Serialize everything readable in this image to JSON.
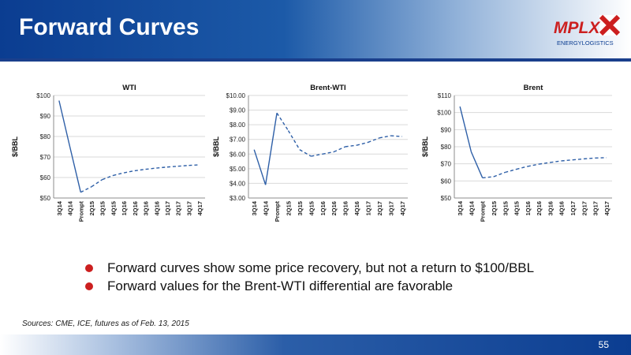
{
  "slide": {
    "title": "Forward Curves",
    "logo_text_top": "MPLX",
    "logo_text_bottom": "ENERGYLOGISTICS",
    "source": "Sources:  CME, ICE, futures as of Feb. 13, 2015",
    "page_number": "55",
    "bullets": [
      "Forward curves show some price recovery, but not a return to $100/BBL",
      "Forward values for the Brent-WTI differential are favorable"
    ]
  },
  "colors": {
    "header_blue": "#0b3d91",
    "line": "#2e5fa7",
    "bullet_red": "#cc1f1f"
  },
  "chart_data": [
    {
      "type": "line",
      "title": "WTI",
      "ylabel": "$/BBL",
      "ylim": [
        50,
        100
      ],
      "yticks": [
        50,
        60,
        70,
        80,
        90,
        100
      ],
      "ytick_labels": [
        "$50",
        "$60",
        "$70",
        "$80",
        "$90",
        "$100"
      ],
      "categories": [
        "3Q14",
        "4Q14",
        "Prompt",
        "2Q15",
        "3Q15",
        "4Q15",
        "1Q16",
        "2Q16",
        "3Q16",
        "4Q16",
        "1Q17",
        "2Q17",
        "3Q17",
        "4Q17"
      ],
      "solid_until_index": 2,
      "grid": true,
      "values": [
        97.5,
        75,
        52.8,
        55.5,
        59,
        61,
        62.3,
        63.3,
        64,
        64.6,
        65.1,
        65.5,
        65.9,
        66.2
      ]
    },
    {
      "type": "line",
      "title": "Brent-WTI",
      "ylabel": "$/BBL",
      "ylim": [
        3,
        10
      ],
      "yticks": [
        3,
        4,
        5,
        6,
        7,
        8,
        9,
        10
      ],
      "ytick_labels": [
        "$3.00",
        "$4.00",
        "$5.00",
        "$6.00",
        "$7.00",
        "$8.00",
        "$9.00",
        "$10.00"
      ],
      "categories": [
        "3Q14",
        "4Q14",
        "Prompt",
        "2Q15",
        "3Q15",
        "4Q15",
        "1Q16",
        "2Q16",
        "3Q16",
        "4Q16",
        "1Q17",
        "2Q17",
        "3Q17",
        "4Q17"
      ],
      "solid_until_index": 2,
      "grid": true,
      "values": [
        6.3,
        3.9,
        8.8,
        7.6,
        6.3,
        5.85,
        6.0,
        6.15,
        6.5,
        6.6,
        6.8,
        7.1,
        7.25,
        7.2
      ]
    },
    {
      "type": "line",
      "title": "Brent",
      "ylabel": "$/BBL",
      "ylim": [
        50,
        110
      ],
      "yticks": [
        50,
        60,
        70,
        80,
        90,
        100,
        110
      ],
      "ytick_labels": [
        "$50",
        "$60",
        "$70",
        "$80",
        "$90",
        "$100",
        "$110"
      ],
      "categories": [
        "3Q14",
        "4Q14",
        "Prompt",
        "2Q15",
        "3Q15",
        "4Q15",
        "1Q16",
        "2Q16",
        "3Q16",
        "4Q16",
        "1Q17",
        "2Q17",
        "3Q17",
        "4Q17"
      ],
      "solid_until_index": 2,
      "grid": true,
      "values": [
        103.5,
        77,
        61.8,
        62.5,
        65,
        66.8,
        68.5,
        69.8,
        70.8,
        71.7,
        72.3,
        72.9,
        73.4,
        73.6
      ]
    }
  ]
}
